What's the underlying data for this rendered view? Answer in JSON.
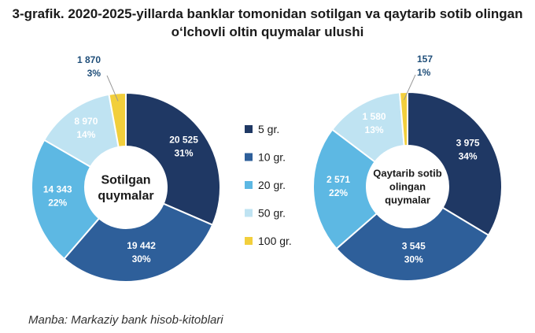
{
  "title_line1": "3-grafik. 2020-2025-yillarda banklar tomonidan sotilgan va qaytarib sotib olingan",
  "title_line2": "o‘lchovli oltin quymalar ulushi",
  "source": "Manba: Markaziy bank hisob-kitoblari",
  "colors": {
    "5 gr.": "#1f3864",
    "10 gr.": "#2e5f9a",
    "20 gr.": "#5db8e3",
    "50 gr.": "#bfe3f2",
    "100 gr.": "#f2cf3c"
  },
  "chart_data": [
    {
      "type": "pie",
      "center_label": [
        "Sotilgan",
        "quymalar"
      ],
      "legend": [
        "5 gr.",
        "10 gr.",
        "20 gr.",
        "50 gr.",
        "100 gr."
      ],
      "slices": [
        {
          "category": "5 gr.",
          "value": 20525,
          "value_label": "20 525",
          "percent_label": "31%"
        },
        {
          "category": "10 gr.",
          "value": 19442,
          "value_label": "19 442",
          "percent_label": "30%"
        },
        {
          "category": "20 gr.",
          "value": 14343,
          "value_label": "14 343",
          "percent_label": "22%"
        },
        {
          "category": "50 gr.",
          "value": 8970,
          "value_label": "8 970",
          "percent_label": "14%"
        },
        {
          "category": "100 gr.",
          "value": 1870,
          "value_label": "1 870",
          "percent_label": "3%"
        }
      ]
    },
    {
      "type": "pie",
      "center_label": [
        "Qaytarib sotib",
        "olingan",
        "quymalar"
      ],
      "legend": [
        "5 gr.",
        "10 gr.",
        "20 gr.",
        "50 gr.",
        "100 gr."
      ],
      "slices": [
        {
          "category": "5 gr.",
          "value": 3975,
          "value_label": "3 975",
          "percent_label": "34%"
        },
        {
          "category": "10 gr.",
          "value": 3545,
          "value_label": "3 545",
          "percent_label": "30%"
        },
        {
          "category": "20 gr.",
          "value": 2571,
          "value_label": "2 571",
          "percent_label": "22%"
        },
        {
          "category": "50 gr.",
          "value": 1580,
          "value_label": "1 580",
          "percent_label": "13%"
        },
        {
          "category": "100 gr.",
          "value": 157,
          "value_label": "157",
          "percent_label": "1%"
        }
      ]
    }
  ]
}
